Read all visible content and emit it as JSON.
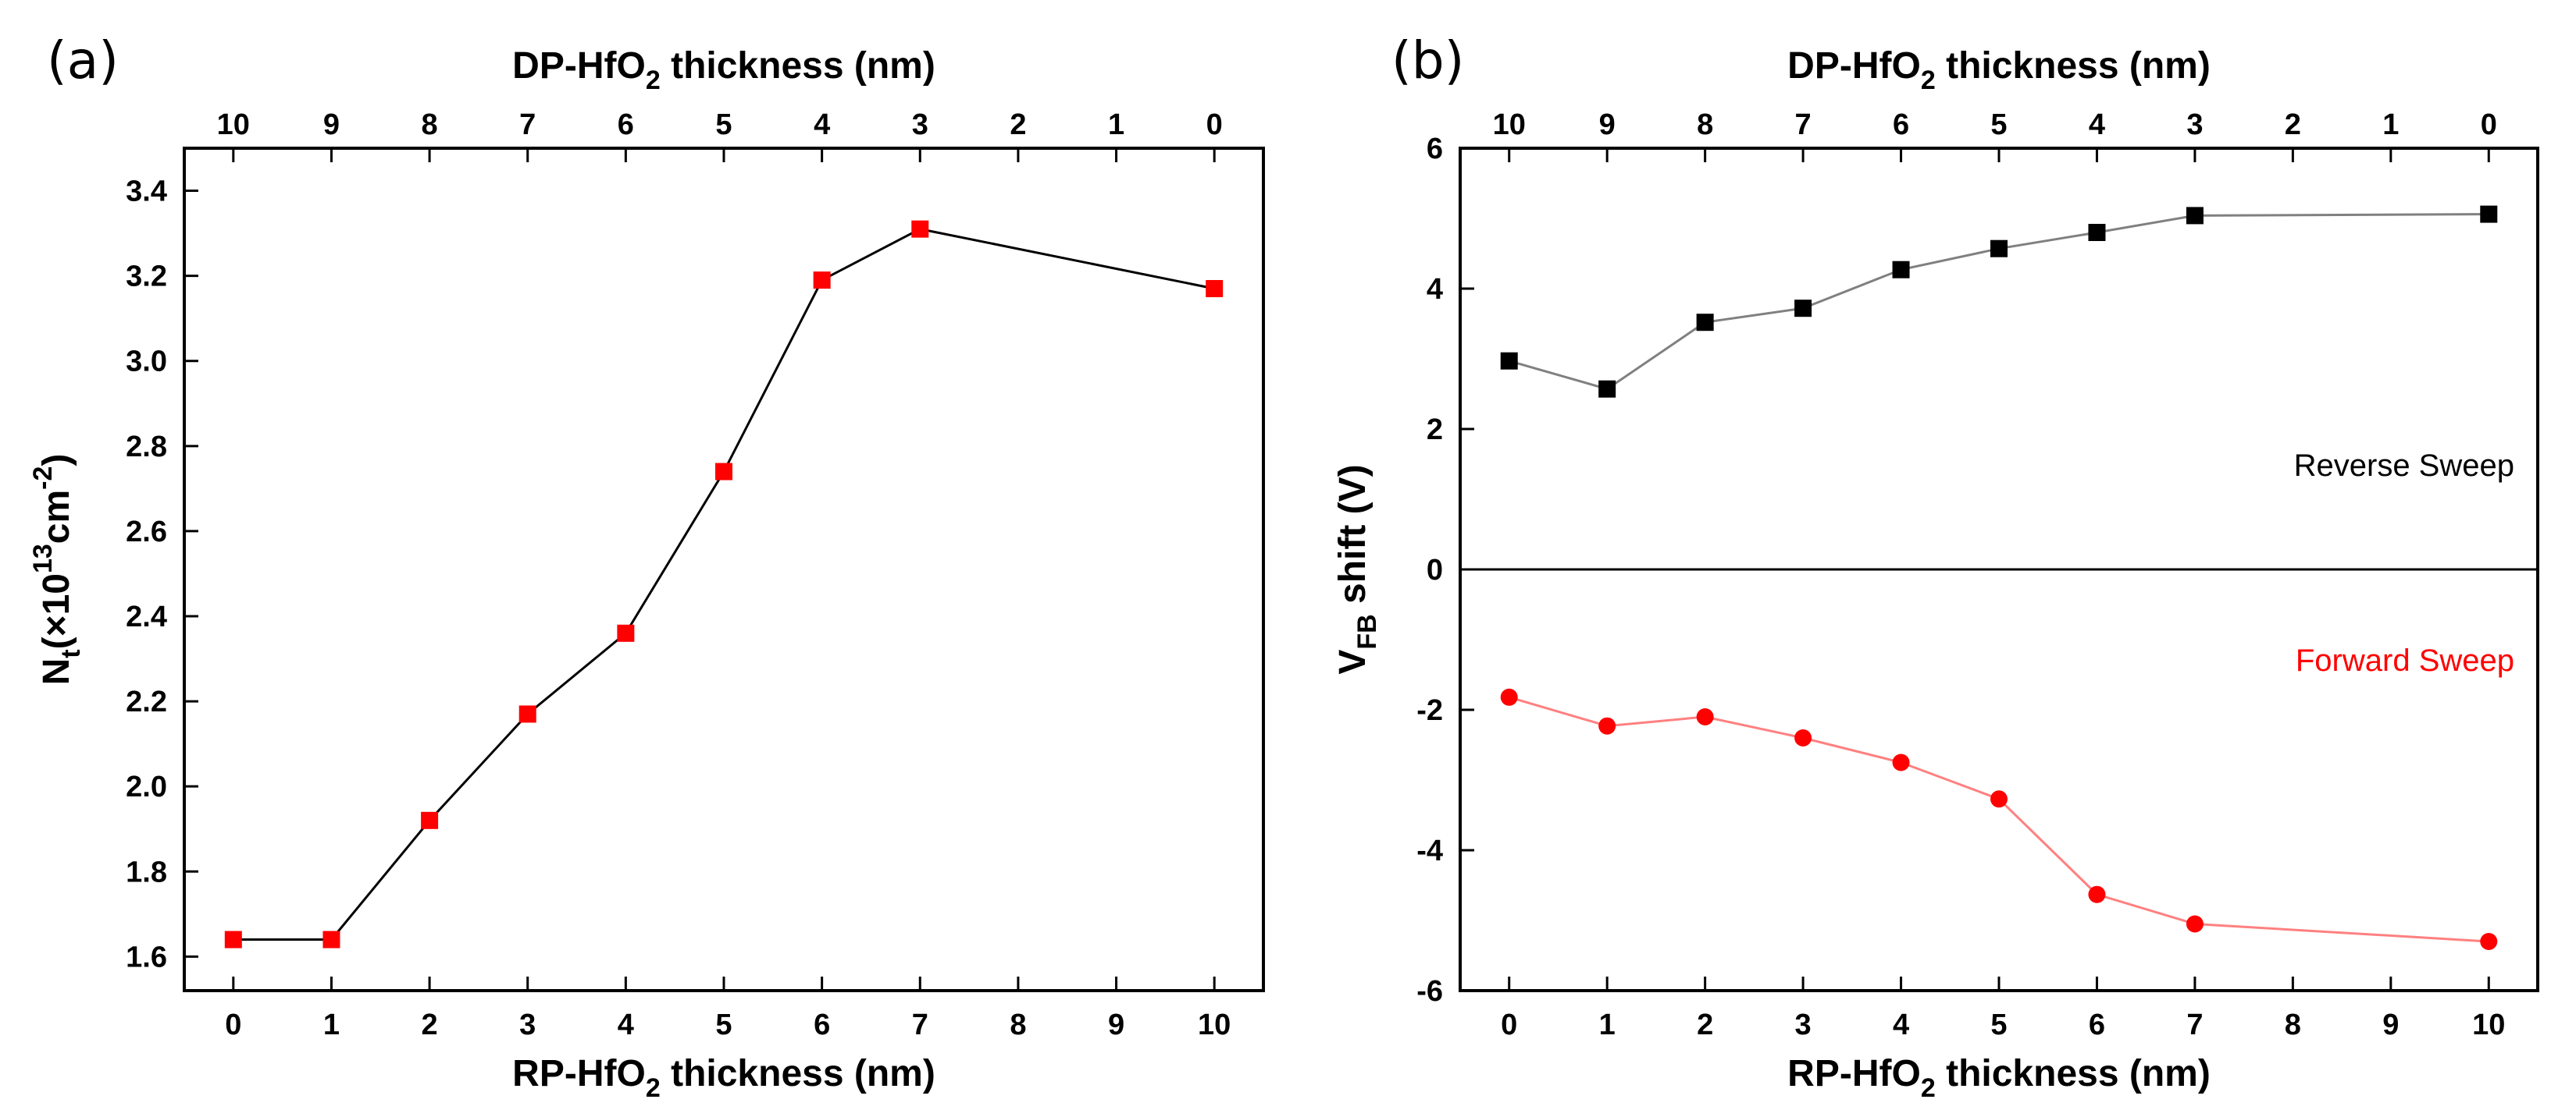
{
  "chart_data": [
    {
      "panel": "(a)",
      "type": "line",
      "title": "",
      "xlabel": {
        "main": "RP-HfO",
        "sub": "2",
        "rest": " thickness (nm)"
      },
      "x2label": {
        "main": "DP-HfO",
        "sub": "2",
        "rest": " thickness (nm)"
      },
      "ylabel": {
        "main": "N",
        "sub": "t",
        "mid": "(×10",
        "sup1": "13",
        "mid2": "cm",
        "sup2": "-2",
        "end": ")"
      },
      "xlim": [
        -0.5,
        10.5
      ],
      "ylim": [
        1.52,
        3.5
      ],
      "x_ticks": [
        0,
        1,
        2,
        3,
        4,
        5,
        6,
        7,
        8,
        9,
        10
      ],
      "x_tick_labels": [
        "0",
        "1",
        "2",
        "3",
        "4",
        "5",
        "6",
        "7",
        "8",
        "9",
        "10"
      ],
      "x2_tick_labels": [
        "10",
        "9",
        "8",
        "7",
        "6",
        "5",
        "4",
        "3",
        "2",
        "1",
        "0"
      ],
      "y_ticks": [
        1.6,
        1.8,
        2.0,
        2.2,
        2.4,
        2.6,
        2.8,
        3.0,
        3.2,
        3.4
      ],
      "y_tick_labels": [
        "1.6",
        "1.8",
        "2.0",
        "2.2",
        "2.4",
        "2.6",
        "2.8",
        "3.0",
        "3.2",
        "3.4"
      ],
      "series": [
        {
          "name": "Nt",
          "marker": "square",
          "marker_color": "#ff0000",
          "line_color": "#000000",
          "x": [
            0,
            1,
            2,
            3,
            4,
            5,
            6,
            7,
            10
          ],
          "y": [
            1.64,
            1.64,
            1.92,
            2.17,
            2.36,
            2.74,
            3.19,
            3.31,
            3.17
          ]
        }
      ]
    },
    {
      "panel": "(b)",
      "type": "line",
      "title": "",
      "xlabel": {
        "main": "RP-HfO",
        "sub": "2",
        "rest": " thickness (nm)"
      },
      "x2label": {
        "main": "DP-HfO",
        "sub": "2",
        "rest": " thickness (nm)"
      },
      "ylabel": {
        "main": "V",
        "sub": "FB",
        "rest": " shift (V)"
      },
      "xlim": [
        -0.5,
        10.5
      ],
      "ylim": [
        -6,
        6
      ],
      "x_ticks": [
        0,
        1,
        2,
        3,
        4,
        5,
        6,
        7,
        8,
        9,
        10
      ],
      "x_tick_labels": [
        "0",
        "1",
        "2",
        "3",
        "4",
        "5",
        "6",
        "7",
        "8",
        "9",
        "10"
      ],
      "x2_tick_labels": [
        "10",
        "9",
        "8",
        "7",
        "6",
        "5",
        "4",
        "3",
        "2",
        "1",
        "0"
      ],
      "y_ticks": [
        -6,
        -4,
        -2,
        0,
        2,
        4,
        6
      ],
      "y_tick_labels": [
        "-6",
        "-4",
        "-2",
        "0",
        "2",
        "4",
        "6"
      ],
      "zero_line": true,
      "annotations": [
        {
          "text": "Reverse Sweep",
          "color": "#000000"
        },
        {
          "text": "Forward Sweep",
          "color": "#ff0000"
        }
      ],
      "series": [
        {
          "name": "Reverse Sweep",
          "marker": "square",
          "marker_color": "#000000",
          "line_color": "#808080",
          "x": [
            0,
            1,
            2,
            3,
            4,
            5,
            6,
            7,
            10
          ],
          "y": [
            2.97,
            2.57,
            3.52,
            3.72,
            4.27,
            4.57,
            4.8,
            5.04,
            5.06
          ]
        },
        {
          "name": "Forward Sweep",
          "marker": "circle",
          "marker_color": "#ff0000",
          "line_color": "#ff8080",
          "x": [
            0,
            1,
            2,
            3,
            4,
            5,
            6,
            7,
            10
          ],
          "y": [
            -1.82,
            -2.23,
            -2.1,
            -2.4,
            -2.75,
            -3.27,
            -4.63,
            -5.05,
            -5.3
          ]
        }
      ]
    }
  ]
}
